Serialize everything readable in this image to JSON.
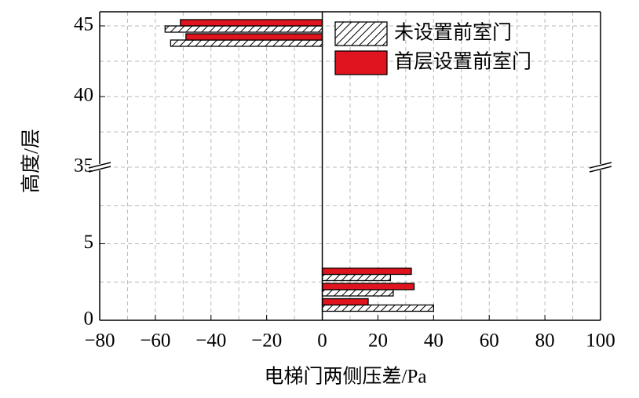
{
  "chart_data": {
    "type": "bar",
    "orientation": "horizontal",
    "x_label": "电梯门两侧压差/Pa",
    "y_label": "高度/层",
    "y": [
      1,
      2,
      3,
      44,
      45
    ],
    "series": [
      {
        "name": "未设置前室门",
        "fill": "hatch",
        "values": [
          40,
          25.5,
          24.5,
          -54.5,
          -56.5
        ]
      },
      {
        "name": "首层设置前室门",
        "color": "#e0141e",
        "values": [
          16.5,
          33,
          32,
          -49,
          -51
        ]
      }
    ],
    "xlim": [
      -80,
      100
    ],
    "xticks": [
      {
        "value": -80,
        "label": "−80"
      },
      {
        "value": -60,
        "label": "−60"
      },
      {
        "value": -40,
        "label": "−40"
      },
      {
        "value": -20,
        "label": "−20"
      },
      0,
      20,
      40,
      60,
      80,
      100
    ],
    "minor_xticks": [
      -70,
      -50,
      -30,
      -10,
      10,
      30,
      50,
      70,
      90
    ],
    "y_segments": [
      {
        "ylim": [
          0,
          10
        ],
        "yticks": [
          0,
          5
        ],
        "minor_yticks": [
          2.5,
          7.5
        ]
      },
      {
        "ylim": [
          35,
          46
        ],
        "yticks": [
          35,
          40,
          45
        ],
        "minor_yticks": [
          37.5,
          42.5
        ]
      }
    ],
    "grid": true,
    "legend": "upper right"
  }
}
